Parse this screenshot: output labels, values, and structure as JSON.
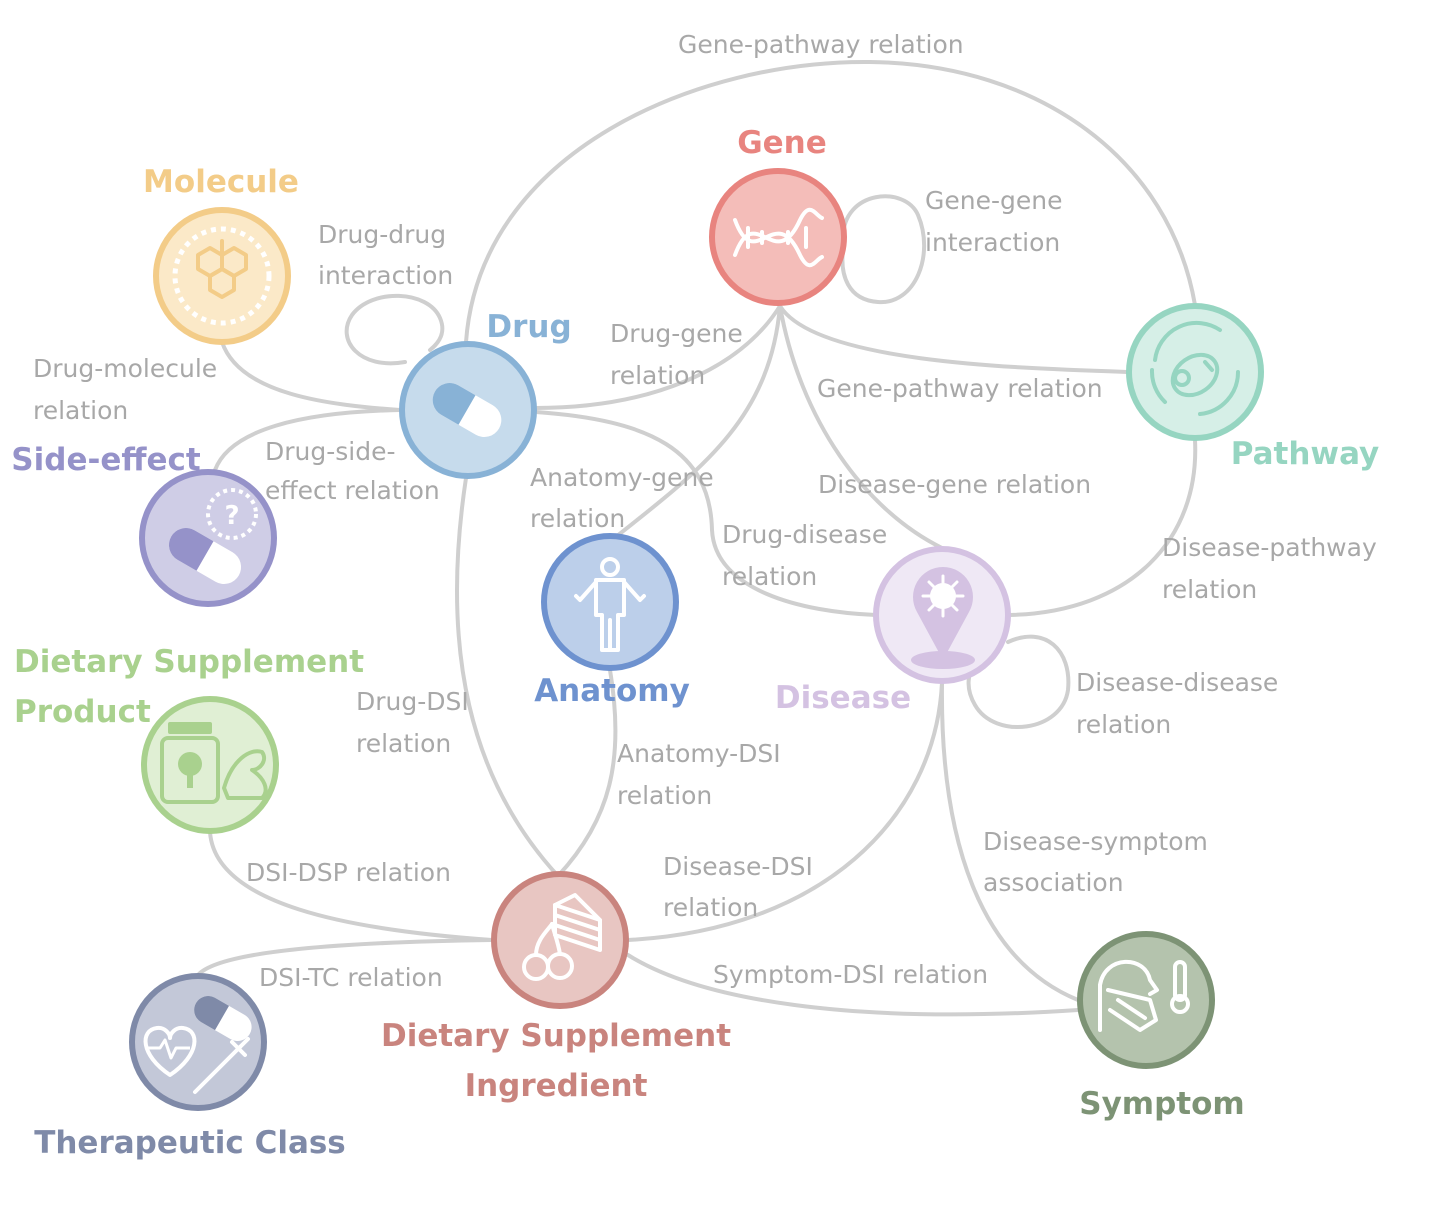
{
  "nodes": {
    "gene": {
      "label": "Gene",
      "color": "#e8847f",
      "fill": "#f4bdb9"
    },
    "molecule": {
      "label": "Molecule",
      "color": "#f3cc88",
      "fill": "#fbe9c8"
    },
    "drug": {
      "label": "Drug",
      "color": "#88b2d6",
      "fill": "#c6dbec"
    },
    "pathway": {
      "label": "Pathway",
      "color": "#96d5c1",
      "fill": "#d6efe7"
    },
    "side_effect": {
      "label": "Side-effect",
      "color": "#9592c9",
      "fill": "#cfcde6"
    },
    "anatomy": {
      "label": "Anatomy",
      "color": "#6e92cf",
      "fill": "#bccfea"
    },
    "disease": {
      "label": "Disease",
      "color": "#d4c2e2",
      "fill": "#efe8f5"
    },
    "dsp": {
      "label_line1": "Dietary Supplement",
      "label_line2": "Product",
      "color": "#a9d18e",
      "fill": "#e0efd4"
    },
    "dsi": {
      "label_line1": "Dietary Supplement",
      "label_line2": "Ingredient",
      "color": "#c9847e",
      "fill": "#e8c6c2"
    },
    "symptom": {
      "label": "Symptom",
      "color": "#7d9375",
      "fill": "#b4c3ad"
    },
    "therapeutic_class": {
      "label": "Therapeutic Class",
      "color": "#7f8aa8",
      "fill": "#c3c8d8"
    }
  },
  "edges": {
    "gene_pathway_top": "Gene-pathway relation",
    "gene_gene_1": "Gene-gene",
    "gene_gene_2": "interaction",
    "drug_drug_1": "Drug-drug",
    "drug_drug_2": "interaction",
    "drug_gene_1": "Drug-gene",
    "drug_gene_2": "relation",
    "drug_molecule_1": "Drug-molecule",
    "drug_molecule_2": "relation",
    "gene_pathway_mid": "Gene-pathway relation",
    "drug_side_effect_1": "Drug-side-",
    "drug_side_effect_2": "effect relation",
    "anatomy_gene_1": "Anatomy-gene",
    "anatomy_gene_2": "relation",
    "disease_gene": "Disease-gene relation",
    "drug_disease_1": "Drug-disease",
    "drug_disease_2": "relation",
    "disease_pathway_1": "Disease-pathway",
    "disease_pathway_2": "relation",
    "drug_dsi_1": "Drug-DSI",
    "drug_dsi_2": "relation",
    "disease_disease_1": "Disease-disease",
    "disease_disease_2": "relation",
    "anatomy_dsi_1": "Anatomy-DSI",
    "anatomy_dsi_2": "relation",
    "disease_symptom_1": "Disease-symptom",
    "disease_symptom_2": "association",
    "dsi_dsp": "DSI-DSP relation",
    "disease_dsi_1": "Disease-DSI",
    "disease_dsi_2": "relation",
    "dsi_tc": "DSI-TC relation",
    "symptom_dsi": "Symptom-DSI relation"
  }
}
